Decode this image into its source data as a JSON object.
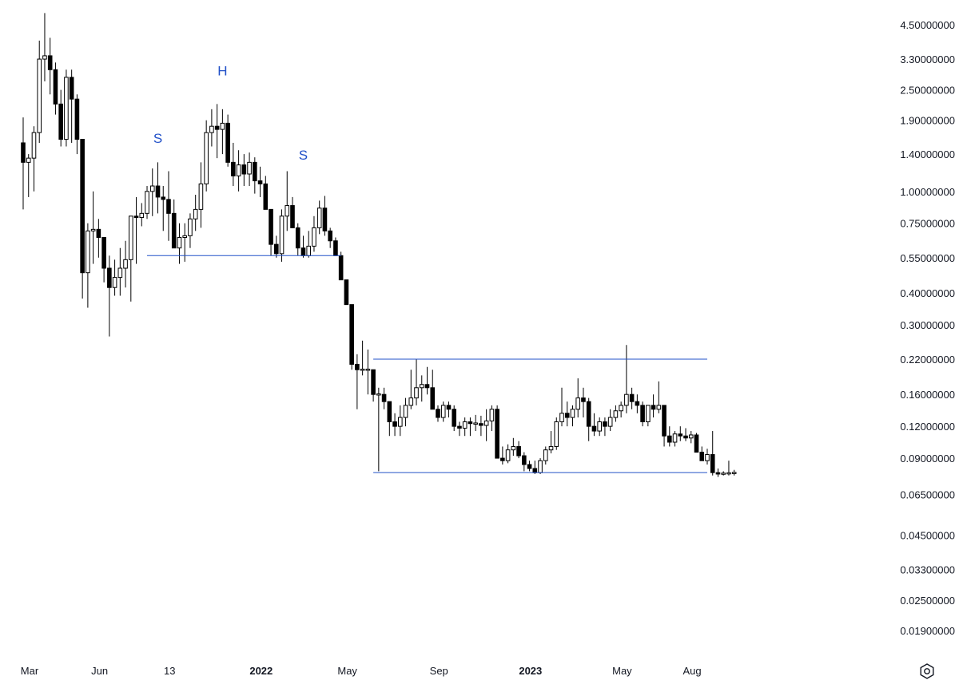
{
  "chart_data": {
    "type": "candlestick",
    "scale": "log",
    "colors": {
      "up_body": "#ffffff",
      "down_body": "#000000",
      "wick": "#000000",
      "lines": "#2150c8",
      "annotations": "#2150c8"
    },
    "y_ticks": [
      "4.50000000",
      "3.30000000",
      "2.50000000",
      "1.90000000",
      "1.40000000",
      "1.00000000",
      "0.75000000",
      "0.55000000",
      "0.40000000",
      "0.30000000",
      "0.22000000",
      "0.16000000",
      "0.12000000",
      "0.09000000",
      "0.06500000",
      "0.04500000",
      "0.03300000",
      "0.02500000",
      "0.01900000"
    ],
    "x_ticks": [
      {
        "label": "Mar",
        "bold": false,
        "candle": 0
      },
      {
        "label": "Jun",
        "bold": false,
        "candle": 13
      },
      {
        "label": "13",
        "bold": false,
        "candle": 26
      },
      {
        "label": "2022",
        "bold": true,
        "candle": 43
      },
      {
        "label": "May",
        "bold": false,
        "candle": 59
      },
      {
        "label": "Sep",
        "bold": false,
        "candle": 76
      },
      {
        "label": "2023",
        "bold": true,
        "candle": 93
      },
      {
        "label": "May",
        "bold": false,
        "candle": 110
      },
      {
        "label": "Aug",
        "bold": false,
        "candle": 123
      }
    ],
    "annotations": [
      {
        "text": "S",
        "candle": 25,
        "price": 1.55
      },
      {
        "text": "H",
        "candle": 37,
        "price": 2.85
      },
      {
        "text": "S",
        "candle": 52,
        "price": 1.33
      }
    ],
    "lines": [
      {
        "name": "neckline",
        "from_candle": 23,
        "to_candle": 59,
        "price": 0.56
      },
      {
        "name": "range-top",
        "from_candle": 65,
        "to_candle": 127,
        "price": 0.22
      },
      {
        "name": "range-bottom",
        "from_candle": 65,
        "to_candle": 127,
        "price": 0.079
      }
    ],
    "candles": [
      [
        1.55,
        1.95,
        0.85,
        1.3
      ],
      [
        1.3,
        1.4,
        0.95,
        1.35
      ],
      [
        1.35,
        1.8,
        1.0,
        1.7
      ],
      [
        1.7,
        3.9,
        1.55,
        3.3
      ],
      [
        3.3,
        5.0,
        2.7,
        3.4
      ],
      [
        3.4,
        4.0,
        2.4,
        3.0
      ],
      [
        3.0,
        3.2,
        2.0,
        2.2
      ],
      [
        2.2,
        2.5,
        1.5,
        1.6
      ],
      [
        1.6,
        3.0,
        1.5,
        2.8
      ],
      [
        2.8,
        3.0,
        1.55,
        2.3
      ],
      [
        2.3,
        2.4,
        1.4,
        1.6
      ],
      [
        1.6,
        1.6,
        0.38,
        0.48
      ],
      [
        0.48,
        0.75,
        0.35,
        0.7
      ],
      [
        0.7,
        1.0,
        0.52,
        0.71
      ],
      [
        0.71,
        0.78,
        0.55,
        0.66
      ],
      [
        0.66,
        0.66,
        0.44,
        0.5
      ],
      [
        0.5,
        0.56,
        0.27,
        0.42
      ],
      [
        0.42,
        0.54,
        0.39,
        0.46
      ],
      [
        0.46,
        0.6,
        0.39,
        0.5
      ],
      [
        0.5,
        0.64,
        0.42,
        0.54
      ],
      [
        0.54,
        0.8,
        0.37,
        0.8
      ],
      [
        0.8,
        0.95,
        0.52,
        0.79
      ],
      [
        0.79,
        0.9,
        0.73,
        0.82
      ],
      [
        0.82,
        1.05,
        0.78,
        1.0
      ],
      [
        1.0,
        1.23,
        0.8,
        1.05
      ],
      [
        1.05,
        1.3,
        0.82,
        0.95
      ],
      [
        0.95,
        1.05,
        0.7,
        0.93
      ],
      [
        0.93,
        1.2,
        0.64,
        0.82
      ],
      [
        0.82,
        0.93,
        0.6,
        0.6
      ],
      [
        0.6,
        0.75,
        0.52,
        0.66
      ],
      [
        0.66,
        0.75,
        0.53,
        0.67
      ],
      [
        0.67,
        0.82,
        0.6,
        0.78
      ],
      [
        0.78,
        0.97,
        0.7,
        0.85
      ],
      [
        0.85,
        1.3,
        0.72,
        1.07
      ],
      [
        1.07,
        1.9,
        1.0,
        1.7
      ],
      [
        1.7,
        2.1,
        1.5,
        1.8
      ],
      [
        1.8,
        2.2,
        1.35,
        1.75
      ],
      [
        1.75,
        2.1,
        1.4,
        1.85
      ],
      [
        1.85,
        2.0,
        1.25,
        1.3
      ],
      [
        1.3,
        1.55,
        1.05,
        1.15
      ],
      [
        1.15,
        1.45,
        1.0,
        1.27
      ],
      [
        1.27,
        1.4,
        1.05,
        1.17
      ],
      [
        1.17,
        1.42,
        1.05,
        1.3
      ],
      [
        1.3,
        1.36,
        0.98,
        1.1
      ],
      [
        1.1,
        1.25,
        0.95,
        1.07
      ],
      [
        1.07,
        1.15,
        0.88,
        0.85
      ],
      [
        0.85,
        0.85,
        0.56,
        0.62
      ],
      [
        0.62,
        0.67,
        0.55,
        0.57
      ],
      [
        0.57,
        0.85,
        0.53,
        0.8
      ],
      [
        0.8,
        1.2,
        0.7,
        0.88
      ],
      [
        0.88,
        0.95,
        0.72,
        0.72
      ],
      [
        0.72,
        0.75,
        0.56,
        0.6
      ],
      [
        0.6,
        0.67,
        0.55,
        0.56
      ],
      [
        0.56,
        0.7,
        0.55,
        0.61
      ],
      [
        0.61,
        0.8,
        0.58,
        0.72
      ],
      [
        0.72,
        0.92,
        0.68,
        0.86
      ],
      [
        0.86,
        0.96,
        0.67,
        0.7
      ],
      [
        0.7,
        0.72,
        0.6,
        0.64
      ],
      [
        0.64,
        0.66,
        0.56,
        0.56
      ],
      [
        0.56,
        0.58,
        0.45,
        0.45
      ],
      [
        0.45,
        0.45,
        0.36,
        0.36
      ],
      [
        0.36,
        0.36,
        0.2,
        0.21
      ],
      [
        0.21,
        0.23,
        0.14,
        0.2
      ],
      [
        0.2,
        0.26,
        0.19,
        0.2
      ],
      [
        0.2,
        0.24,
        0.16,
        0.2
      ],
      [
        0.2,
        0.2,
        0.15,
        0.16
      ],
      [
        0.16,
        0.17,
        0.08,
        0.16
      ],
      [
        0.16,
        0.17,
        0.14,
        0.15
      ],
      [
        0.15,
        0.15,
        0.11,
        0.125
      ],
      [
        0.125,
        0.135,
        0.11,
        0.12
      ],
      [
        0.12,
        0.145,
        0.11,
        0.13
      ],
      [
        0.13,
        0.155,
        0.12,
        0.145
      ],
      [
        0.145,
        0.2,
        0.14,
        0.155
      ],
      [
        0.155,
        0.22,
        0.145,
        0.17
      ],
      [
        0.17,
        0.19,
        0.15,
        0.175
      ],
      [
        0.175,
        0.205,
        0.16,
        0.17
      ],
      [
        0.17,
        0.2,
        0.14,
        0.14
      ],
      [
        0.14,
        0.145,
        0.125,
        0.13
      ],
      [
        0.13,
        0.15,
        0.125,
        0.145
      ],
      [
        0.145,
        0.15,
        0.13,
        0.14
      ],
      [
        0.14,
        0.145,
        0.115,
        0.12
      ],
      [
        0.12,
        0.125,
        0.11,
        0.118
      ],
      [
        0.118,
        0.13,
        0.11,
        0.125
      ],
      [
        0.125,
        0.13,
        0.11,
        0.123
      ],
      [
        0.123,
        0.133,
        0.115,
        0.123
      ],
      [
        0.123,
        0.132,
        0.11,
        0.121
      ],
      [
        0.121,
        0.14,
        0.105,
        0.126
      ],
      [
        0.126,
        0.145,
        0.115,
        0.14
      ],
      [
        0.14,
        0.145,
        0.09,
        0.09
      ],
      [
        0.09,
        0.1,
        0.085,
        0.088
      ],
      [
        0.088,
        0.102,
        0.086,
        0.097
      ],
      [
        0.097,
        0.108,
        0.092,
        0.1
      ],
      [
        0.1,
        0.105,
        0.09,
        0.092
      ],
      [
        0.092,
        0.095,
        0.08,
        0.085
      ],
      [
        0.085,
        0.088,
        0.08,
        0.082
      ],
      [
        0.082,
        0.088,
        0.078,
        0.079
      ],
      [
        0.079,
        0.09,
        0.078,
        0.088
      ],
      [
        0.088,
        0.1,
        0.085,
        0.097
      ],
      [
        0.097,
        0.115,
        0.094,
        0.1
      ],
      [
        0.1,
        0.13,
        0.097,
        0.125
      ],
      [
        0.125,
        0.17,
        0.12,
        0.135
      ],
      [
        0.135,
        0.15,
        0.12,
        0.13
      ],
      [
        0.13,
        0.145,
        0.12,
        0.14
      ],
      [
        0.14,
        0.185,
        0.13,
        0.155
      ],
      [
        0.155,
        0.17,
        0.13,
        0.15
      ],
      [
        0.15,
        0.155,
        0.105,
        0.12
      ],
      [
        0.12,
        0.135,
        0.11,
        0.115
      ],
      [
        0.115,
        0.13,
        0.11,
        0.125
      ],
      [
        0.125,
        0.13,
        0.11,
        0.12
      ],
      [
        0.12,
        0.14,
        0.115,
        0.13
      ],
      [
        0.13,
        0.145,
        0.125,
        0.138
      ],
      [
        0.138,
        0.15,
        0.13,
        0.145
      ],
      [
        0.145,
        0.25,
        0.135,
        0.16
      ],
      [
        0.16,
        0.17,
        0.14,
        0.15
      ],
      [
        0.15,
        0.16,
        0.135,
        0.145
      ],
      [
        0.145,
        0.15,
        0.12,
        0.125
      ],
      [
        0.125,
        0.145,
        0.12,
        0.145
      ],
      [
        0.145,
        0.16,
        0.13,
        0.14
      ],
      [
        0.14,
        0.18,
        0.135,
        0.145
      ],
      [
        0.145,
        0.145,
        0.1,
        0.11
      ],
      [
        0.11,
        0.12,
        0.1,
        0.104
      ],
      [
        0.104,
        0.115,
        0.1,
        0.112
      ],
      [
        0.112,
        0.12,
        0.105,
        0.11
      ],
      [
        0.11,
        0.118,
        0.105,
        0.108
      ],
      [
        0.108,
        0.115,
        0.103,
        0.111
      ],
      [
        0.111,
        0.113,
        0.095,
        0.095
      ],
      [
        0.095,
        0.1,
        0.088,
        0.088
      ],
      [
        0.088,
        0.098,
        0.085,
        0.093
      ],
      [
        0.093,
        0.115,
        0.077,
        0.079
      ],
      [
        0.079,
        0.082,
        0.076,
        0.078
      ],
      [
        0.078,
        0.08,
        0.077,
        0.0785
      ],
      [
        0.0785,
        0.088,
        0.077,
        0.0785
      ],
      [
        0.0785,
        0.081,
        0.077,
        0.079
      ]
    ]
  },
  "toolbar": {
    "settings_icon": "gear-icon"
  }
}
